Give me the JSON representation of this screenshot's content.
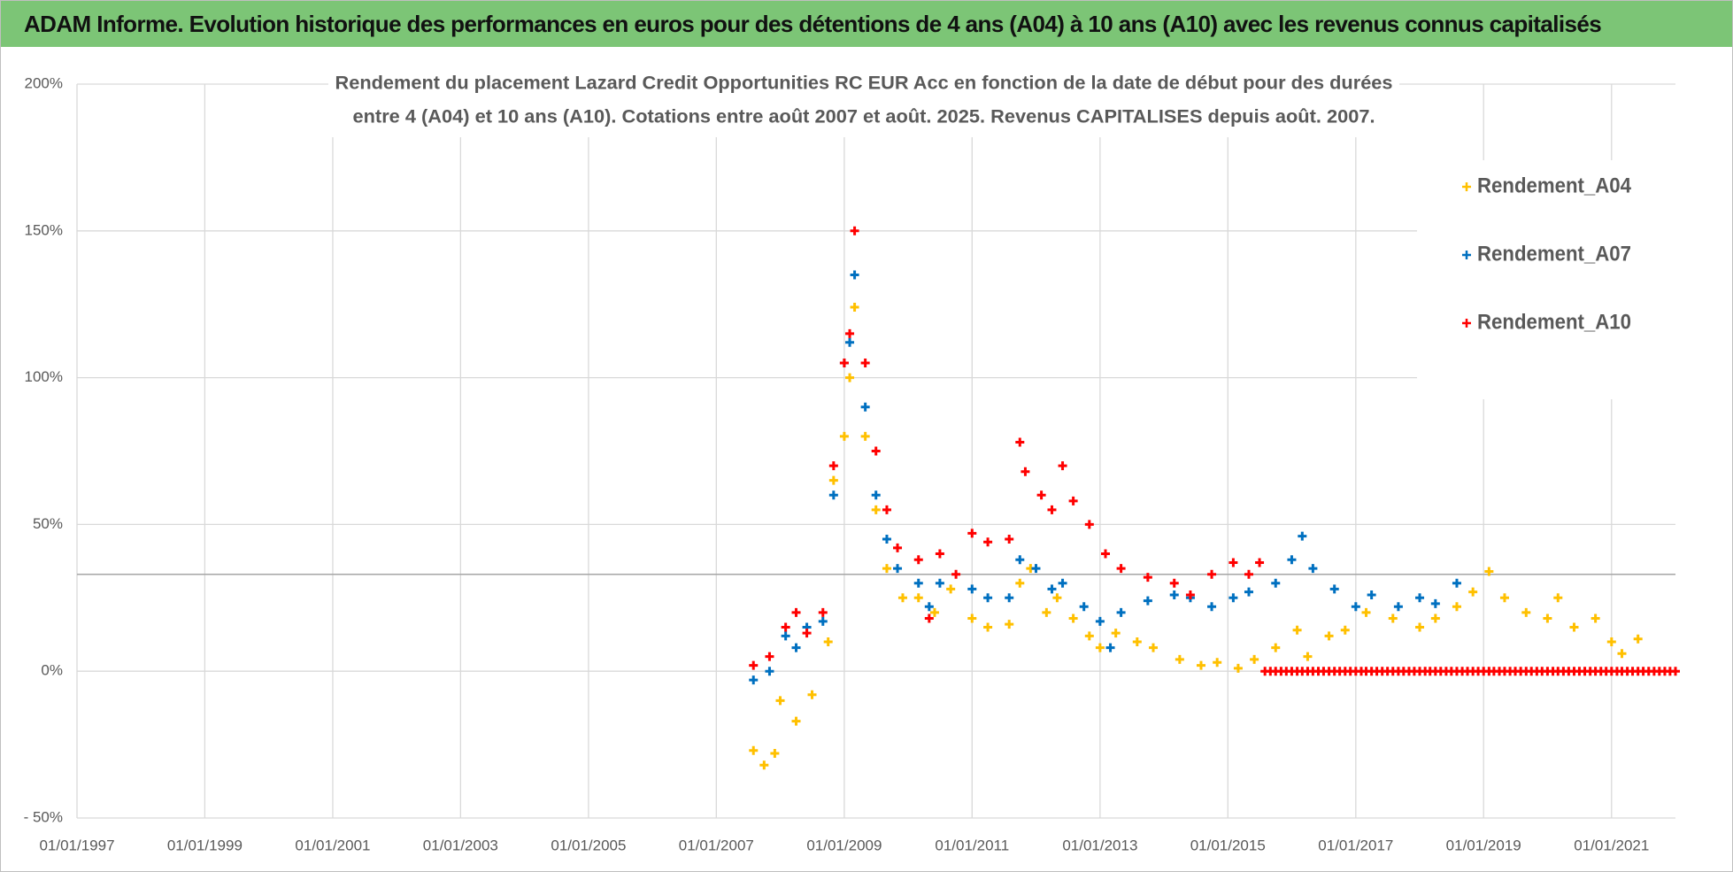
{
  "header": {
    "title": "ADAM Informe. Evolution historique des performances en euros pour des détentions de 4 ans (A04) à 10 ans (A10) avec les revenus connus capitalisés"
  },
  "chart_data": {
    "type": "scatter",
    "title": [
      "Rendement du placement Lazard Credit Opportunities RC EUR Acc en fonction de la date de début pour des durées",
      "entre 4 (A04) et 10 ans (A10).  Cotations entre août 2007 et août. 2025. Revenus CAPITALISES depuis août. 2007."
    ],
    "xlim": [
      "1997-01-01",
      "2022-01-01"
    ],
    "xticks": [
      {
        "value": "1997-01-01",
        "label": "01/01/1997"
      },
      {
        "value": "1999-01-01",
        "label": "01/01/1999"
      },
      {
        "value": "2001-01-01",
        "label": "01/01/2001"
      },
      {
        "value": "2003-01-01",
        "label": "01/01/2003"
      },
      {
        "value": "2005-01-01",
        "label": "01/01/2005"
      },
      {
        "value": "2007-01-01",
        "label": "01/01/2007"
      },
      {
        "value": "2009-01-01",
        "label": "01/01/2009"
      },
      {
        "value": "2011-01-01",
        "label": "01/01/2011"
      },
      {
        "value": "2013-01-01",
        "label": "01/01/2013"
      },
      {
        "value": "2015-01-01",
        "label": "01/01/2015"
      },
      {
        "value": "2017-01-01",
        "label": "01/01/2017"
      },
      {
        "value": "2019-01-01",
        "label": "01/01/2019"
      },
      {
        "value": "2021-01-01",
        "label": "01/01/2021"
      }
    ],
    "ylim": [
      -50,
      200
    ],
    "yticks": [
      {
        "value": -50,
        "label": "- 50%"
      },
      {
        "value": 0,
        "label": "0%"
      },
      {
        "value": 50,
        "label": "50%"
      },
      {
        "value": 100,
        "label": "100%"
      },
      {
        "value": 150,
        "label": "150%"
      },
      {
        "value": 200,
        "label": "200%"
      }
    ],
    "grid": true,
    "reference_line": 33,
    "legend": "upper right",
    "series": [
      {
        "name": "Rendement_A04",
        "color": "#ffc000",
        "x": [
          "2007-08-01",
          "2007-10-01",
          "2007-12-01",
          "2008-01-01",
          "2008-04-01",
          "2008-07-01",
          "2008-10-01",
          "2008-11-01",
          "2009-01-01",
          "2009-02-01",
          "2009-03-01",
          "2009-05-01",
          "2009-07-01",
          "2009-09-01",
          "2009-12-01",
          "2010-03-01",
          "2010-06-01",
          "2010-09-01",
          "2011-01-01",
          "2011-04-01",
          "2011-08-01",
          "2011-10-01",
          "2011-12-01",
          "2012-03-01",
          "2012-05-01",
          "2012-08-01",
          "2012-11-01",
          "2013-01-01",
          "2013-04-01",
          "2013-08-01",
          "2013-11-01",
          "2014-04-01",
          "2014-08-01",
          "2014-11-01",
          "2015-03-01",
          "2015-06-01",
          "2015-10-01",
          "2016-02-01",
          "2016-04-01",
          "2016-08-01",
          "2016-11-01",
          "2017-03-01",
          "2017-08-01",
          "2018-01-01",
          "2018-04-01",
          "2018-08-01",
          "2018-11-01",
          "2019-02-01",
          "2019-05-01",
          "2019-09-01",
          "2020-01-01",
          "2020-03-01",
          "2020-06-01",
          "2020-10-01",
          "2021-01-01",
          "2021-03-01",
          "2021-06-01"
        ],
        "values": [
          -27,
          -32,
          -28,
          -10,
          -17,
          -8,
          10,
          65,
          80,
          100,
          124,
          80,
          55,
          35,
          25,
          25,
          20,
          28,
          18,
          15,
          16,
          30,
          35,
          20,
          25,
          18,
          12,
          8,
          13,
          10,
          8,
          4,
          2,
          3,
          1,
          4,
          8,
          14,
          5,
          12,
          14,
          20,
          18,
          15,
          18,
          22,
          27,
          34,
          25,
          20,
          18,
          25,
          15,
          18,
          10,
          6,
          11
        ]
      },
      {
        "name": "Rendement_A07",
        "color": "#0070c0",
        "x": [
          "2007-08-01",
          "2007-11-01",
          "2008-02-01",
          "2008-04-01",
          "2008-06-01",
          "2008-09-01",
          "2008-11-01",
          "2009-01-01",
          "2009-02-01",
          "2009-03-01",
          "2009-05-01",
          "2009-07-01",
          "2009-09-01",
          "2009-11-01",
          "2010-03-01",
          "2010-05-01",
          "2010-07-01",
          "2011-01-01",
          "2011-04-01",
          "2011-08-01",
          "2011-10-01",
          "2012-01-01",
          "2012-04-01",
          "2012-06-01",
          "2012-10-01",
          "2013-01-01",
          "2013-03-01",
          "2013-05-01",
          "2013-10-01",
          "2014-03-01",
          "2014-06-01",
          "2014-10-01",
          "2015-02-01",
          "2015-05-01",
          "2015-10-01",
          "2016-01-01",
          "2016-03-01",
          "2016-05-01",
          "2016-09-01",
          "2017-01-01",
          "2017-04-01",
          "2017-09-01",
          "2018-01-01",
          "2018-04-01",
          "2018-08-01"
        ],
        "values": [
          -3,
          0,
          12,
          8,
          15,
          17,
          60,
          105,
          112,
          135,
          90,
          60,
          45,
          35,
          30,
          22,
          30,
          28,
          25,
          25,
          38,
          35,
          28,
          30,
          22,
          17,
          8,
          20,
          24,
          26,
          25,
          22,
          25,
          27,
          30,
          38,
          46,
          35,
          28,
          22,
          26,
          22,
          25,
          23,
          30
        ]
      },
      {
        "name": "Rendement_A10",
        "color": "#ff0000",
        "x": [
          "2007-08-01",
          "2007-11-01",
          "2008-02-01",
          "2008-04-01",
          "2008-06-01",
          "2008-09-01",
          "2008-11-01",
          "2009-01-01",
          "2009-02-01",
          "2009-03-01",
          "2009-05-01",
          "2009-07-01",
          "2009-09-01",
          "2009-11-01",
          "2010-03-01",
          "2010-05-01",
          "2010-07-01",
          "2010-10-01",
          "2011-01-01",
          "2011-04-01",
          "2011-08-01",
          "2011-10-01",
          "2011-11-01",
          "2012-02-01",
          "2012-04-01",
          "2012-06-01",
          "2012-08-01",
          "2012-11-01",
          "2013-02-01",
          "2013-05-01",
          "2013-10-01",
          "2014-03-01",
          "2014-06-01",
          "2014-10-01",
          "2015-02-01",
          "2015-05-01",
          "2015-07-01",
          "2015-08-01",
          "2015-09-01",
          "2015-10-01",
          "2015-11-01",
          "2015-12-01",
          "2016-01-01",
          "2016-02-01",
          "2016-03-01",
          "2016-04-01",
          "2016-05-01",
          "2016-06-01",
          "2016-07-01",
          "2016-08-01",
          "2016-09-01",
          "2016-10-01",
          "2016-11-01",
          "2016-12-01",
          "2017-01-01",
          "2017-02-01",
          "2017-03-01",
          "2017-04-01",
          "2017-05-01",
          "2017-06-01",
          "2017-07-01",
          "2017-08-01",
          "2017-09-01",
          "2017-10-01",
          "2017-11-01",
          "2017-12-01",
          "2018-01-01",
          "2018-02-01",
          "2018-03-01",
          "2018-04-01",
          "2018-05-01",
          "2018-06-01",
          "2018-07-01",
          "2018-08-01",
          "2018-09-01",
          "2018-10-01",
          "2018-11-01",
          "2018-12-01",
          "2019-01-01",
          "2019-02-01",
          "2019-03-01",
          "2019-04-01",
          "2019-05-01",
          "2019-06-01",
          "2019-07-01",
          "2019-08-01",
          "2019-09-01",
          "2019-10-01",
          "2019-11-01",
          "2019-12-01",
          "2020-01-01",
          "2020-02-01",
          "2020-03-01",
          "2020-04-01",
          "2020-05-01",
          "2020-06-01",
          "2020-07-01",
          "2020-08-01",
          "2020-09-01",
          "2020-10-01",
          "2020-11-01",
          "2020-12-01",
          "2021-01-01",
          "2021-02-01",
          "2021-03-01",
          "2021-04-01",
          "2021-05-01",
          "2021-06-01",
          "2021-07-01",
          "2021-08-01",
          "2021-09-01",
          "2021-10-01",
          "2021-11-01",
          "2021-12-01",
          "2022-01-01"
        ],
        "values": [
          2,
          5,
          15,
          20,
          13,
          20,
          70,
          105,
          115,
          150,
          105,
          75,
          55,
          42,
          38,
          18,
          40,
          33,
          47,
          44,
          45,
          78,
          68,
          60,
          55,
          70,
          58,
          50,
          40,
          35,
          32,
          30,
          26,
          33,
          37,
          33,
          37,
          0,
          0,
          0,
          0,
          0,
          0,
          0,
          0,
          0,
          0,
          0,
          0,
          0,
          0,
          0,
          0,
          0,
          0,
          0,
          0,
          0,
          0,
          0,
          0,
          0,
          0,
          0,
          0,
          0,
          0,
          0,
          0,
          0,
          0,
          0,
          0,
          0,
          0,
          0,
          0,
          0,
          0,
          0,
          0,
          0,
          0,
          0,
          0,
          0,
          0,
          0,
          0,
          0,
          0,
          0,
          0,
          0,
          0,
          0,
          0,
          0,
          0,
          0,
          0,
          0,
          0,
          0,
          0,
          0,
          0,
          0,
          0,
          0,
          0,
          0,
          0,
          0,
          0
        ]
      }
    ]
  }
}
